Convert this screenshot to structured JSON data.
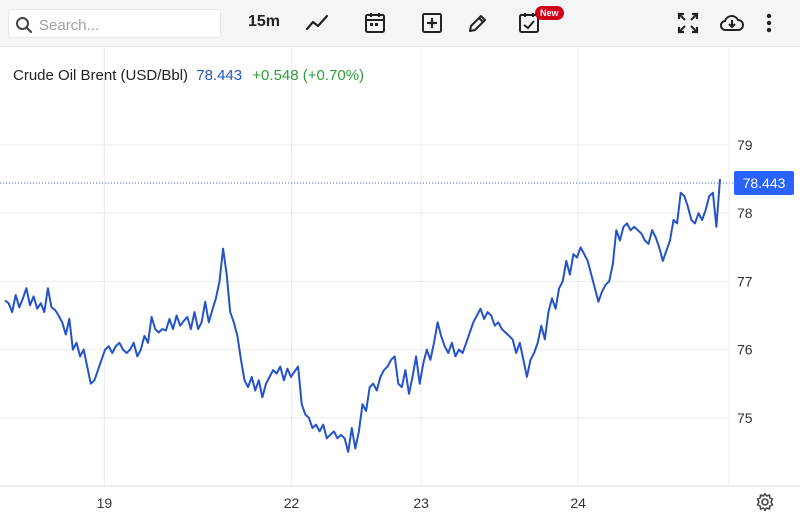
{
  "toolbar": {
    "search_placeholder": "Search...",
    "interval_label": "15m",
    "new_badge": "New",
    "icons": [
      "search-icon",
      "line-chart-icon",
      "calendar-icon",
      "add-indicator-icon",
      "draw-pencil-icon",
      "events-calendar-icon",
      "fullscreen-icon",
      "download-icon",
      "more-options-icon",
      "settings-gear-icon"
    ]
  },
  "header": {
    "name": "Crude Oil Brent (USD/Bbl)",
    "price": "78.443",
    "change": "+0.548 (+0.70%)"
  },
  "colors": {
    "line": "#2453c9",
    "price_tag": "#2962ff",
    "change": "#2e9c3a",
    "grid": "#e9ebee"
  },
  "chart_data": {
    "type": "line",
    "title": "",
    "xlabel": "",
    "ylabel": "",
    "ylim": [
      74.0,
      79.85
    ],
    "x_ticks": [
      {
        "label": "19",
        "pos": 0.138
      },
      {
        "label": "22",
        "pos": 0.398
      },
      {
        "label": "23",
        "pos": 0.578
      },
      {
        "label": "24",
        "pos": 0.796
      }
    ],
    "y_ticks": [
      {
        "label": "75",
        "value": 75
      },
      {
        "label": "76",
        "value": 76
      },
      {
        "label": "77",
        "value": 77
      },
      {
        "label": "78",
        "value": 78
      },
      {
        "label": "79",
        "value": 79
      }
    ],
    "last_value_label": "78.443",
    "last_value": 78.443,
    "grid": true,
    "series": [
      {
        "values": [
          76.72,
          76.68,
          76.55,
          76.8,
          76.62,
          76.75,
          76.9,
          76.65,
          76.78,
          76.6,
          76.68,
          76.55,
          76.9,
          76.62,
          76.58,
          76.5,
          76.4,
          76.22,
          76.45,
          76.0,
          76.1,
          75.9,
          76.0,
          75.75,
          75.5,
          75.55,
          75.7,
          75.85,
          76.0,
          76.05,
          75.95,
          76.05,
          76.1,
          76.0,
          75.95,
          76.0,
          76.1,
          75.9,
          76.0,
          76.2,
          76.1,
          76.48,
          76.3,
          76.25,
          76.3,
          76.28,
          76.45,
          76.3,
          76.5,
          76.35,
          76.42,
          76.48,
          76.3,
          76.55,
          76.3,
          76.4,
          76.7,
          76.4,
          76.58,
          76.75,
          77.0,
          77.48,
          77.1,
          76.55,
          76.4,
          76.2,
          75.85,
          75.55,
          75.45,
          75.6,
          75.4,
          75.55,
          75.3,
          75.5,
          75.6,
          75.7,
          75.65,
          75.75,
          75.55,
          75.72,
          75.6,
          75.68,
          75.75,
          75.2,
          75.05,
          75.0,
          74.85,
          74.9,
          74.8,
          74.9,
          74.7,
          74.75,
          74.8,
          74.7,
          74.75,
          74.7,
          74.5,
          74.85,
          74.55,
          74.8,
          75.2,
          75.1,
          75.45,
          75.5,
          75.4,
          75.6,
          75.7,
          75.75,
          75.85,
          75.9,
          75.5,
          75.45,
          75.7,
          75.35,
          75.6,
          75.9,
          75.5,
          75.8,
          76.0,
          75.85,
          76.1,
          76.4,
          76.2,
          76.05,
          75.95,
          76.1,
          75.9,
          76.0,
          75.95,
          76.1,
          76.25,
          76.4,
          76.5,
          76.6,
          76.45,
          76.55,
          76.5,
          76.35,
          76.4,
          76.3,
          76.25,
          76.2,
          76.15,
          75.95,
          76.1,
          75.85,
          75.6,
          75.85,
          75.95,
          76.1,
          76.35,
          76.15,
          76.55,
          76.75,
          76.6,
          76.9,
          77.0,
          77.3,
          77.1,
          77.4,
          77.35,
          77.5,
          77.4,
          77.3,
          77.1,
          76.9,
          76.7,
          76.85,
          76.95,
          77.0,
          77.25,
          77.75,
          77.6,
          77.8,
          77.85,
          77.75,
          77.8,
          77.75,
          77.7,
          77.6,
          77.55,
          77.75,
          77.65,
          77.5,
          77.3,
          77.45,
          77.6,
          77.9,
          77.85,
          78.3,
          78.25,
          78.1,
          77.9,
          77.85,
          78.0,
          77.9,
          78.05,
          78.25,
          78.3,
          77.8,
          78.5
        ]
      }
    ]
  }
}
